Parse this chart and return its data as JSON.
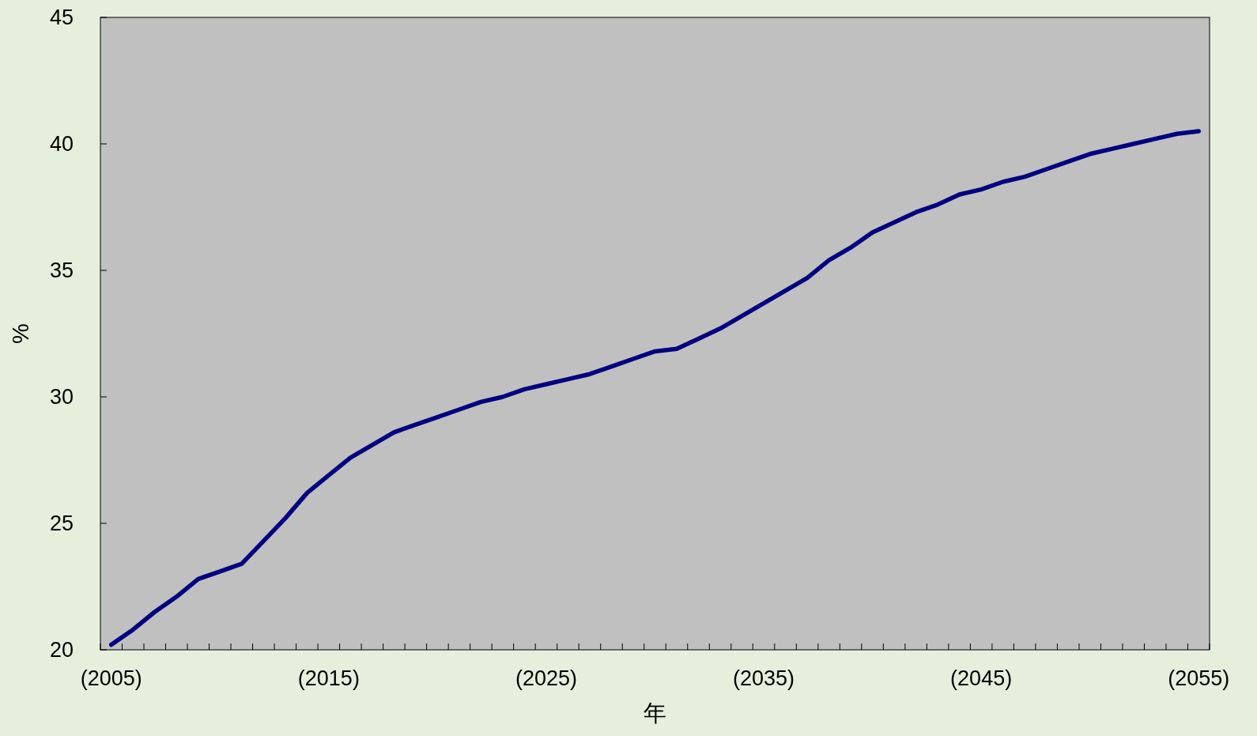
{
  "chart_data": {
    "type": "line",
    "xlabel": "年",
    "ylabel": "%",
    "categories": [
      "(2005)",
      null,
      null,
      null,
      null,
      null,
      null,
      null,
      null,
      null,
      "(2015)",
      null,
      null,
      null,
      null,
      null,
      null,
      null,
      null,
      null,
      "(2025)",
      null,
      null,
      null,
      null,
      null,
      null,
      null,
      null,
      null,
      "(2035)",
      null,
      null,
      null,
      null,
      null,
      null,
      null,
      null,
      null,
      "(2045)",
      null,
      null,
      null,
      null,
      null,
      null,
      null,
      null,
      null,
      "(2055)"
    ],
    "series": [
      {
        "color": "#000080",
        "values": [
          20.2,
          20.8,
          21.5,
          22.1,
          22.8,
          23.1,
          23.4,
          24.3,
          25.2,
          26.2,
          26.9,
          27.6,
          28.1,
          28.6,
          28.9,
          29.2,
          29.5,
          29.8,
          30.0,
          30.3,
          30.5,
          30.7,
          30.9,
          31.2,
          31.5,
          31.8,
          31.9,
          32.3,
          32.7,
          33.2,
          33.7,
          34.2,
          34.7,
          35.4,
          35.9,
          36.5,
          36.9,
          37.3,
          37.6,
          38.0,
          38.2,
          38.5,
          38.7,
          39.0,
          39.3,
          39.6,
          39.8,
          40.0,
          40.2,
          40.4,
          40.5
        ]
      }
    ],
    "ylim": [
      20,
      45
    ],
    "yticks": [
      20,
      25,
      30,
      35,
      40,
      45
    ]
  }
}
